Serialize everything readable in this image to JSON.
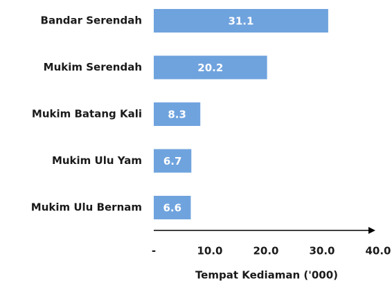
{
  "chart_data": {
    "type": "bar",
    "orientation": "horizontal",
    "categories": [
      "Bandar Serendah",
      "Mukim Serendah",
      "Mukim Batang Kali",
      "Mukim Ulu Yam",
      "Mukim Ulu Bernam"
    ],
    "values": [
      31.1,
      20.2,
      8.3,
      6.7,
      6.6
    ],
    "color": "#6fa3de",
    "xlabel": "Tempat Kediaman ('000)",
    "xlim": [
      0,
      40
    ],
    "xticks": [
      {
        "value": 0,
        "label": "-"
      },
      {
        "value": 10,
        "label": "10.0"
      },
      {
        "value": 20,
        "label": "20.0"
      },
      {
        "value": 30,
        "label": "30.0"
      },
      {
        "value": 40,
        "label": "40.0"
      }
    ],
    "grid": false
  }
}
